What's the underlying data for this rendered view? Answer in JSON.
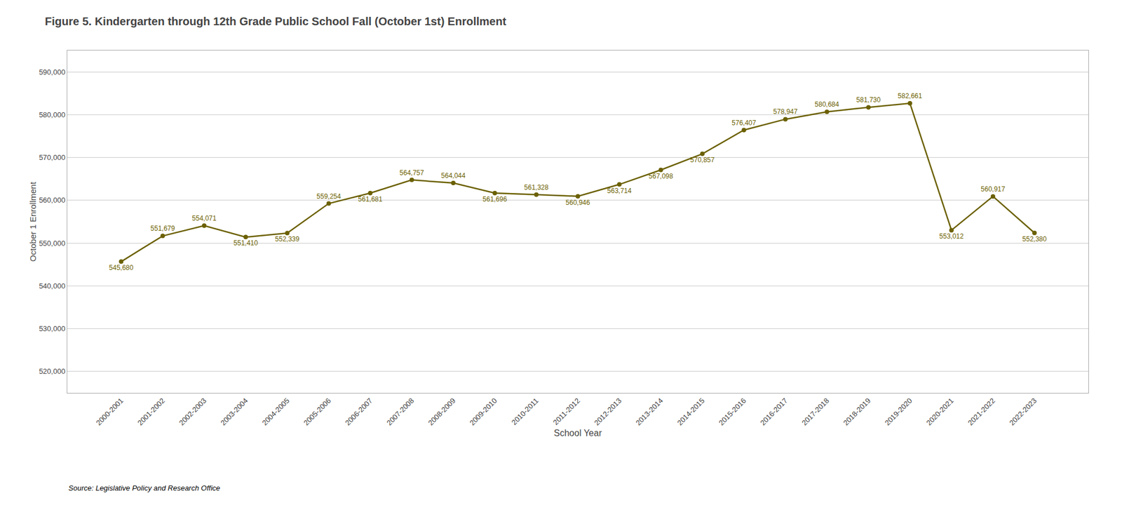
{
  "chart_data": {
    "type": "line",
    "title": "Figure 5. Kindergarten through 12th Grade Public School Fall (October 1st) Enrollment",
    "xlabel": "School Year",
    "ylabel": "October 1 Enrollment",
    "source": "Source: Legislative Policy and Research Office",
    "color": "#6b6000",
    "marker": "circle",
    "categories": [
      "2000-2001",
      "2001-2002",
      "2002-2003",
      "2003-2004",
      "2004-2005",
      "2005-2006",
      "2006-2007",
      "2007-2008",
      "2008-2009",
      "2009-2010",
      "2010-2011",
      "2011-2012",
      "2012-2013",
      "2013-2014",
      "2014-2015",
      "2015-2016",
      "2016-2017",
      "2017-2018",
      "2018-2019",
      "2019-2020",
      "2020-2021",
      "2021-2022",
      "2022-2023"
    ],
    "values": [
      545680,
      551679,
      554071,
      551410,
      552339,
      559254,
      561681,
      564757,
      564044,
      561696,
      561328,
      560946,
      563714,
      567098,
      570857,
      576407,
      578947,
      580684,
      581730,
      582661,
      553012,
      560917,
      552380
    ],
    "value_labels": [
      "545,680",
      "551,679",
      "554,071",
      "551,410",
      "552,339",
      "559,254",
      "561,681",
      "564,757",
      "564,044",
      "561,696",
      "561,328",
      "560,946",
      "563,714",
      "567,098",
      "570,857",
      "576,407",
      "578,947",
      "580,684",
      "581,730",
      "582,661",
      "553,012",
      "560,917",
      "552,380"
    ],
    "data_labels": true,
    "ylim": [
      515000,
      595000
    ],
    "yticks": [
      {
        "value": 520000,
        "label": "520,000"
      },
      {
        "value": 530000,
        "label": "530,000"
      },
      {
        "value": 540000,
        "label": "540,000"
      },
      {
        "value": 550000,
        "label": "550,000"
      },
      {
        "value": 560000,
        "label": "560,000"
      },
      {
        "value": 570000,
        "label": "570,000"
      },
      {
        "value": 580000,
        "label": "580,000"
      },
      {
        "value": 590000,
        "label": "590,000"
      }
    ],
    "grid": true
  }
}
